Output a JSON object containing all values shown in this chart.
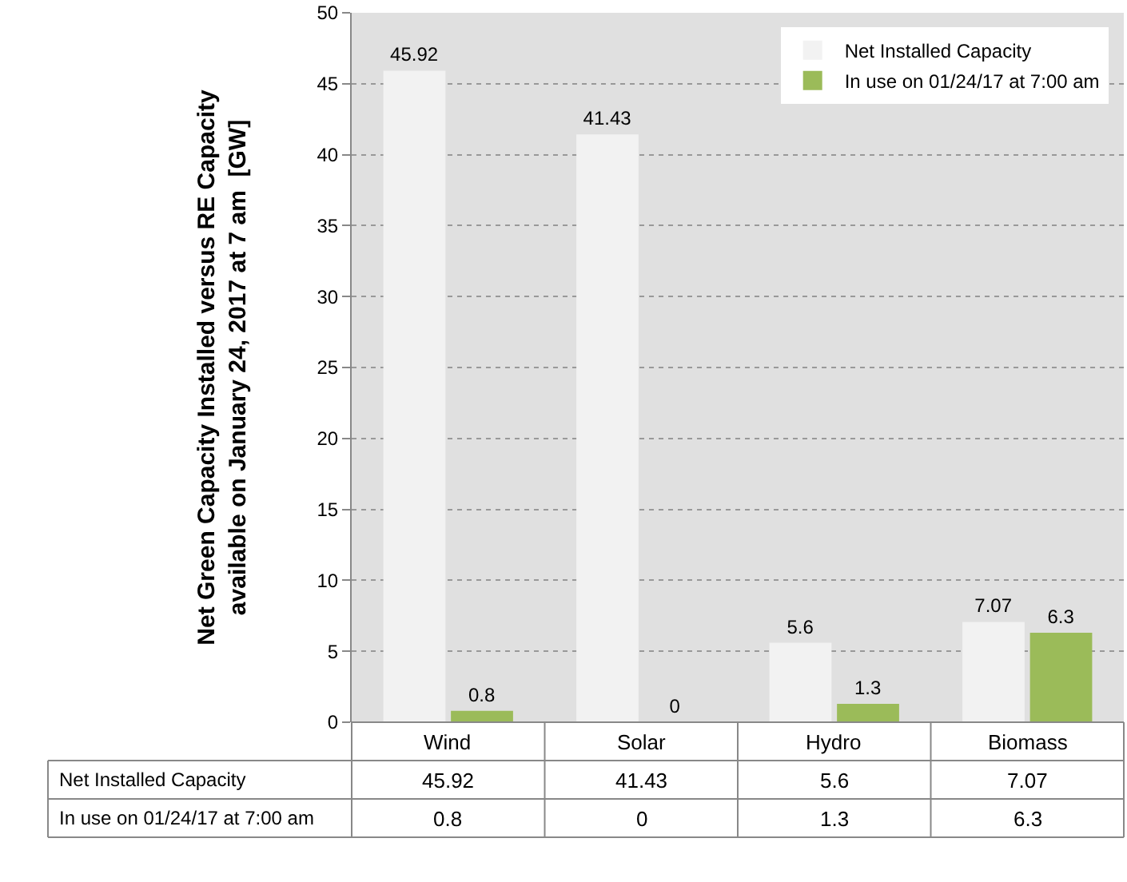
{
  "chart_data": {
    "type": "bar",
    "ylabel": "Net Green Capacity Installed versus RE Capacity\navailable on January 24, 2017 at 7 am  [GW]",
    "categories": [
      "Wind",
      "Solar",
      "Hydro",
      "Biomass"
    ],
    "series": [
      {
        "name": "Net Installed Capacity",
        "color": "#f2f2f2",
        "values": [
          45.92,
          41.43,
          5.6,
          7.07
        ],
        "value_labels": [
          "45.92",
          "41.43",
          "5.6",
          "7.07"
        ]
      },
      {
        "name": "In use on 01/24/17 at 7:00 am",
        "color": "#9bbb59",
        "values": [
          0.8,
          0,
          1.3,
          6.3
        ],
        "value_labels": [
          "0.8",
          "0",
          "1.3",
          "6.3"
        ]
      }
    ],
    "ylim": [
      0,
      50
    ],
    "yticks": [
      0,
      5,
      10,
      15,
      20,
      25,
      30,
      35,
      40,
      45,
      50
    ],
    "grid": "y",
    "legend": "top right"
  }
}
